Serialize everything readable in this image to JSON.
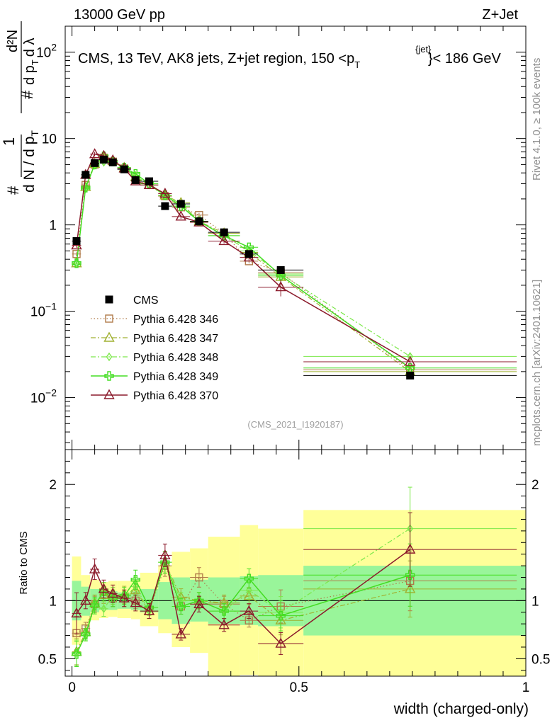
{
  "header": {
    "left": "13000 GeV pp",
    "right": "Z+Jet"
  },
  "side_labels": {
    "rivet": "Rivet 4.1.0, ≥ 100k events",
    "source": "mcplots.cern.ch [arXiv:2401.10621]"
  },
  "analysis_tag": "(CMS_2021_I1920187)",
  "chart_data": [
    {
      "name": "main",
      "type": "scatter",
      "title": "CMS, 13 TeV, AK8 jets, Z+jet region, 150 <p_T^{jet}< 186 GeV",
      "title_parts": {
        "pre": "CMS, 13 TeV, AK8 jets, Z+jet region, 150 <p",
        "sub": "T",
        "sup": "{jet}",
        "post": "}< 186 GeV"
      },
      "ylabel": "1/dN/dpT # d²N/dpT dλ",
      "ylabel_parts": {
        "frac1_num": "#",
        "frac1_den": "1",
        "frac2_den": "d N / d p",
        "frac2_den_sub": "T",
        "frac3_num": "d²N",
        "frac3_den": "d p",
        "frac3_den_sub": "T",
        "frac3_den_post": "d λ",
        "hash": "#"
      },
      "xlabel": "width (charged-only)",
      "yscale": "log",
      "xlim": [
        -0.015,
        1.0
      ],
      "ylim": [
        0.0025,
        200
      ],
      "y_ticks": [
        {
          "v": 100,
          "base": "10",
          "exp": "2"
        },
        {
          "v": 10,
          "base": "10",
          "exp": ""
        },
        {
          "v": 1,
          "base": "1",
          "exp": ""
        },
        {
          "v": 0.1,
          "base": "10",
          "exp": "−1"
        },
        {
          "v": 0.01,
          "base": "10",
          "exp": "−2"
        }
      ],
      "x": [
        0.01,
        0.03,
        0.05,
        0.07,
        0.09,
        0.115,
        0.14,
        0.17,
        0.205,
        0.24,
        0.28,
        0.335,
        0.39,
        0.46,
        0.745
      ],
      "xerr": [
        0.01,
        0.01,
        0.01,
        0.01,
        0.01,
        0.015,
        0.01,
        0.02,
        0.015,
        0.02,
        0.02,
        0.035,
        0.02,
        0.05,
        0.235
      ],
      "series": [
        {
          "name": "CMS",
          "marker": "filled-square",
          "color": "#000000",
          "line": "none",
          "values": [
            0.65,
            3.8,
            5.2,
            5.7,
            5.3,
            4.4,
            3.3,
            3.2,
            1.65,
            1.75,
            1.1,
            0.82,
            0.46,
            0.3,
            0.018
          ]
        },
        {
          "name": "Pythia 6.428 346",
          "marker": "open-square",
          "color": "#b07b4a",
          "line": "dotted",
          "values": [
            0.46,
            2.9,
            5.0,
            6.0,
            5.4,
            4.5,
            3.3,
            2.9,
            2.15,
            1.6,
            1.3,
            0.8,
            0.38,
            0.28,
            0.021
          ]
        },
        {
          "name": "Pythia 6.428 347",
          "marker": "open-triangle",
          "color": "#a0b030",
          "line": "dashdot",
          "values": [
            0.36,
            2.75,
            5.1,
            6.0,
            5.5,
            4.6,
            3.6,
            2.9,
            2.2,
            1.8,
            1.1,
            0.8,
            0.48,
            0.25,
            0.02
          ]
        },
        {
          "name": "Pythia 6.428 348",
          "marker": "open-diamond",
          "color": "#7ce84a",
          "line": "dashdot",
          "values": [
            0.36,
            2.65,
            4.9,
            5.3,
            5.5,
            4.5,
            3.7,
            2.9,
            2.2,
            1.75,
            1.1,
            0.75,
            0.5,
            0.27,
            0.03
          ]
        },
        {
          "name": "Pythia 6.428 349",
          "marker": "open-cross",
          "color": "#44dd22",
          "line": "solid",
          "values": [
            0.36,
            2.7,
            5.0,
            6.2,
            5.4,
            4.6,
            3.9,
            3.0,
            2.2,
            1.65,
            1.1,
            0.75,
            0.55,
            0.26,
            0.022
          ]
        },
        {
          "name": "Pythia 6.428 370",
          "marker": "open-triangle",
          "color": "#8b1a2b",
          "line": "solid",
          "values": [
            0.58,
            3.8,
            6.6,
            6.3,
            5.6,
            4.5,
            3.2,
            2.9,
            2.3,
            1.25,
            1.07,
            0.65,
            0.42,
            0.19,
            0.026
          ]
        }
      ]
    },
    {
      "name": "ratio",
      "type": "scatter",
      "ylabel": "Ratio to CMS",
      "xlabel": "width (charged-only)",
      "xlim": [
        -0.015,
        1.0
      ],
      "ylim": [
        0.35,
        2.3
      ],
      "y_ticks": [
        0.5,
        1,
        2
      ],
      "x_ticks": [
        {
          "v": 0,
          "label": "0"
        },
        {
          "v": 0.5,
          "label": "0.5"
        },
        {
          "v": 1,
          "label": "1"
        }
      ],
      "bands": {
        "edges": [
          0,
          0.02,
          0.04,
          0.06,
          0.08,
          0.1,
          0.13,
          0.15,
          0.19,
          0.22,
          0.26,
          0.3,
          0.37,
          0.41,
          0.51,
          1.0
        ],
        "stat_lo": [
          0.83,
          0.87,
          0.9,
          0.92,
          0.92,
          0.93,
          0.92,
          0.9,
          0.84,
          0.8,
          0.82,
          0.8,
          0.79,
          0.78,
          0.7
        ],
        "stat_hi": [
          1.17,
          1.12,
          1.1,
          1.08,
          1.08,
          1.07,
          1.08,
          1.1,
          1.16,
          1.2,
          1.18,
          1.2,
          1.21,
          1.22,
          1.3
        ],
        "total_lo": [
          0.62,
          0.79,
          0.83,
          0.85,
          0.86,
          0.85,
          0.84,
          0.78,
          0.72,
          0.6,
          0.55,
          0.35,
          0.36,
          0.35,
          0.35
        ],
        "total_hi": [
          1.38,
          1.22,
          1.18,
          1.16,
          1.17,
          1.17,
          1.18,
          1.24,
          1.3,
          1.42,
          1.45,
          1.55,
          1.65,
          1.62,
          1.78
        ]
      },
      "series": [
        {
          "name": "Pythia 6.428 346",
          "color": "#b07b4a",
          "line": "dotted",
          "marker": "open-square",
          "values": [
            0.72,
            0.76,
            0.97,
            1.05,
            1.02,
            1.02,
            1.0,
            0.91,
            1.3,
            0.95,
            1.2,
            0.97,
            0.83,
            0.95,
            1.17
          ]
        },
        {
          "name": "Pythia 6.428 347",
          "color": "#a0b030",
          "line": "dashdot",
          "marker": "open-triangle",
          "values": [
            0.56,
            0.73,
            0.98,
            1.05,
            1.04,
            1.05,
            1.09,
            0.91,
            1.33,
            1.03,
            1.0,
            0.98,
            1.04,
            0.83,
            1.1
          ]
        },
        {
          "name": "Pythia 6.428 348",
          "color": "#7ce84a",
          "line": "dashdot",
          "marker": "open-diamond",
          "values": [
            0.55,
            0.7,
            0.95,
            0.93,
            1.04,
            1.02,
            1.12,
            0.91,
            1.33,
            1.0,
            1.0,
            0.91,
            1.09,
            0.9,
            1.62
          ]
        },
        {
          "name": "Pythia 6.428 349",
          "color": "#44dd22",
          "line": "solid",
          "marker": "open-cross",
          "values": [
            0.54,
            0.71,
            0.96,
            1.08,
            1.02,
            1.04,
            1.18,
            0.94,
            1.33,
            0.95,
            1.0,
            0.91,
            1.19,
            0.87,
            1.22
          ]
        },
        {
          "name": "Pythia 6.428 370",
          "color": "#8b1a2b",
          "line": "solid",
          "marker": "open-triangle",
          "values": [
            0.89,
            1.0,
            1.27,
            1.1,
            1.06,
            1.02,
            0.98,
            0.91,
            1.39,
            0.71,
            0.97,
            0.79,
            0.91,
            0.63,
            1.44
          ]
        }
      ]
    }
  ]
}
